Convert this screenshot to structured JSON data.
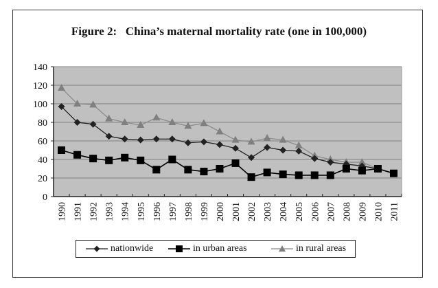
{
  "chart_data": {
    "type": "line",
    "title": "Figure 2:   China’s maternal mortality rate (one in 100,000)",
    "xlabel": "",
    "ylabel": "",
    "ylim": [
      0,
      140
    ],
    "yticks": [
      0,
      20,
      40,
      60,
      80,
      100,
      120,
      140
    ],
    "grid": true,
    "legend_position": "bottom",
    "categories": [
      "1990",
      "1991",
      "1992",
      "1993",
      "1994",
      "1995",
      "1996",
      "1997",
      "1998",
      "1999",
      "2000",
      "2001",
      "2002",
      "2003",
      "2004",
      "2005",
      "2006",
      "2007",
      "2008",
      "2009",
      "2010",
      "2011"
    ],
    "series": [
      {
        "name": "nationwide",
        "marker": "diamond",
        "color": "#222222",
        "values": [
          97,
          80,
          78,
          65,
          62,
          61,
          62,
          62,
          58,
          59,
          56,
          52,
          42,
          53,
          50,
          49,
          41,
          37,
          35,
          33,
          30,
          25
        ]
      },
      {
        "name": "in urban areas",
        "marker": "square",
        "color": "#000000",
        "values": [
          50,
          45,
          41,
          39,
          42,
          39,
          29,
          40,
          29,
          27,
          30,
          36,
          21,
          26,
          24,
          23,
          23,
          23,
          30,
          28,
          30,
          25
        ]
      },
      {
        "name": "in rural areas",
        "marker": "triangle",
        "color": "#8a8a8a",
        "values": [
          117,
          100,
          99,
          84,
          80,
          77,
          85,
          80,
          76,
          79,
          70,
          61,
          59,
          63,
          61,
          55,
          44,
          40,
          37,
          37,
          30,
          25
        ]
      }
    ],
    "plot_background": "#c0c0c0",
    "gridline_color": "#8c8c8c"
  }
}
